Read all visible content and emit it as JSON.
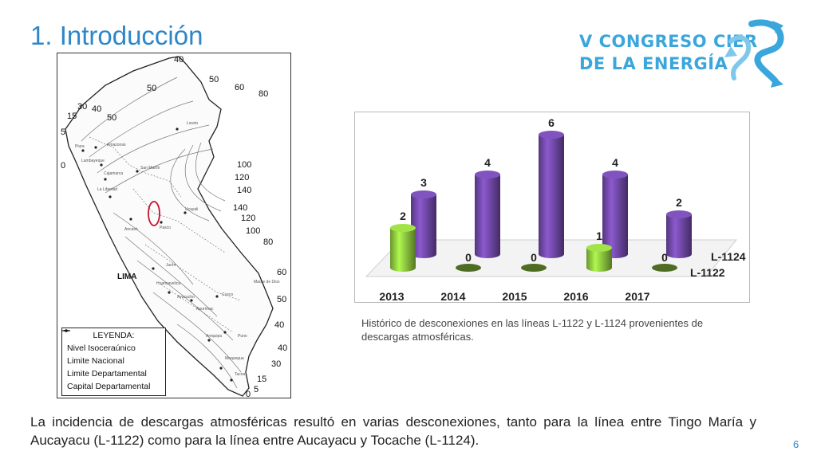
{
  "slide": {
    "title": "1. Introducción",
    "page_number": "6",
    "body_text": "La incidencia de descargas atmosféricas resultó en varias desconexiones, tanto para la línea entre Tingo María y Aucayacu (L-1122) como para la línea entre Aucayacu y Tocache (L-1124)."
  },
  "logo": {
    "line1": "V CONGRESO CIER",
    "line2": "DE LA ENERGÍA",
    "color": "#3aa6dc"
  },
  "map": {
    "isolines": [
      "40",
      "50",
      "50",
      "60",
      "80",
      "30",
      "40",
      "15",
      "50",
      "5",
      "0",
      "100",
      "120",
      "140",
      "140",
      "120",
      "100",
      "80",
      "60",
      "50",
      "40",
      "40",
      "30",
      "15",
      "5",
      "0"
    ],
    "cities": [
      "Loreto",
      "Piura",
      "Amazonas",
      "Lambayeque",
      "Cajamarca",
      "San Martín",
      "La Libertad",
      "Ancash",
      "Ucayali",
      "Pasco",
      "Junín",
      "Huancavelica",
      "Ayacucho",
      "Apurímac",
      "Cusco",
      "Madre de Dios",
      "Arequipa",
      "Puno",
      "Moquegua",
      "Tacna"
    ],
    "lima_label": "LIMA",
    "legend": {
      "title": "LEYENDA:",
      "items": [
        "Nivel Isoceraúnico",
        "Limite Nacional",
        "Limite Departamental",
        "Capital Departamental"
      ]
    },
    "highlight_color": "#c8102e"
  },
  "chart_data": {
    "type": "bar",
    "categories": [
      "2013",
      "2014",
      "2015",
      "2016",
      "2017"
    ],
    "series": [
      {
        "name": "L-1122",
        "values": [
          2,
          0,
          0,
          1,
          0
        ],
        "color": "#8dc63f"
      },
      {
        "name": "L-1124",
        "values": [
          3,
          4,
          6,
          4,
          2
        ],
        "color": "#7048a6"
      }
    ],
    "ylim": [
      0,
      6
    ],
    "style": "3d-cylinder",
    "legend_placement": "right"
  },
  "caption": "Histórico de desconexiones en las líneas L-1122 y L-1124 provenientes de descargas atmosféricas."
}
